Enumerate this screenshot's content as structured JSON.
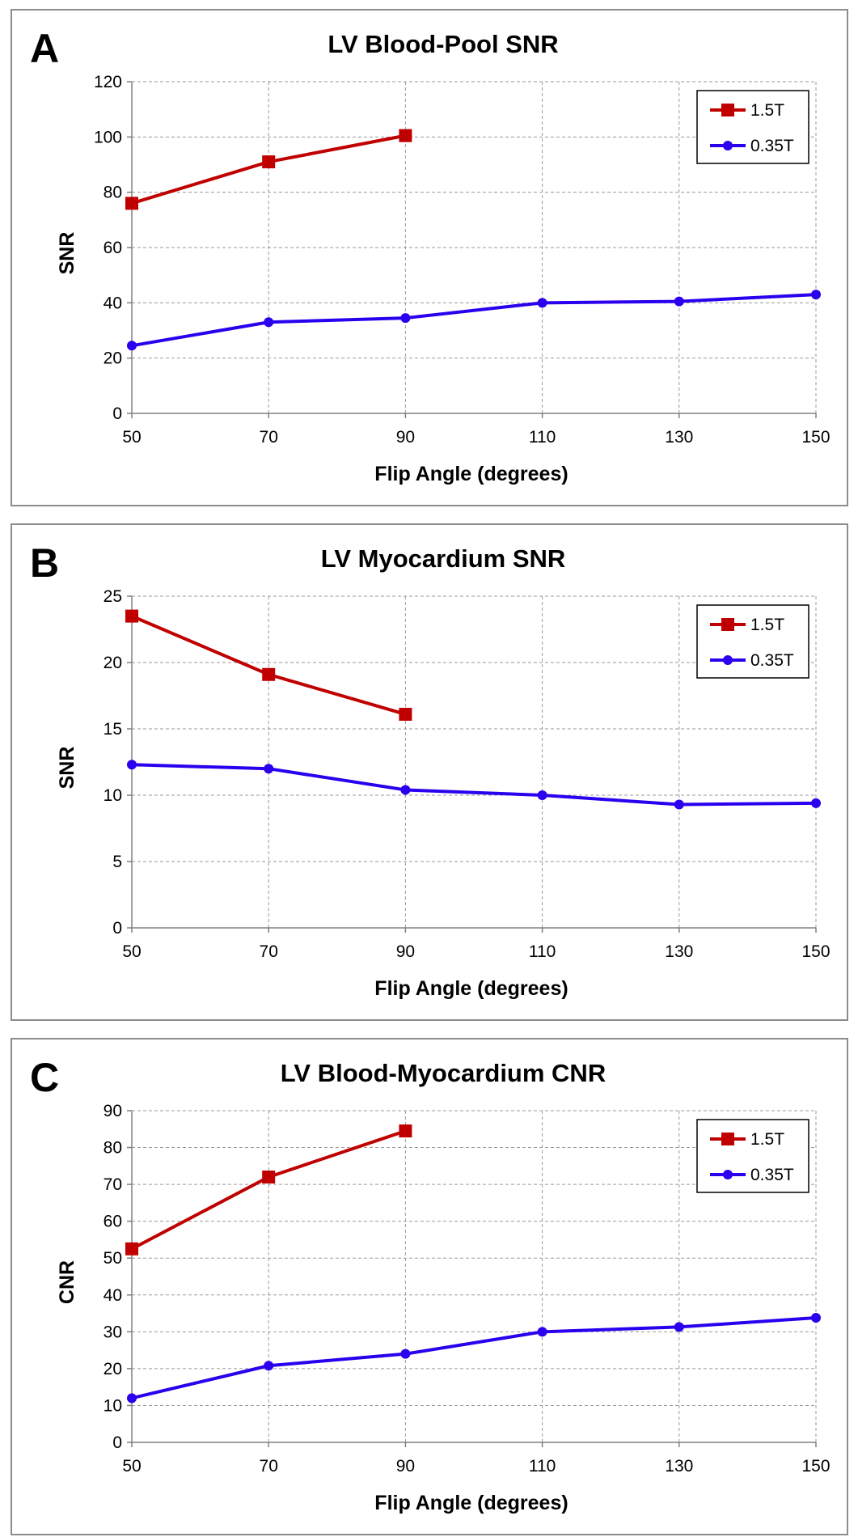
{
  "chart_data": [
    {
      "type": "line",
      "panel_letter": "A",
      "title": "LV Blood-Pool SNR",
      "xlabel": "Flip Angle (degrees)",
      "ylabel": "SNR",
      "x_ticks": [
        50,
        70,
        90,
        110,
        130,
        150
      ],
      "y_ticks": [
        0,
        20,
        40,
        60,
        80,
        100,
        120
      ],
      "xlim": [
        50,
        150
      ],
      "ylim": [
        0,
        120
      ],
      "grid": true,
      "legend_position": "top-right",
      "series": [
        {
          "name": "1.5T",
          "color": "#c00000",
          "marker": "square",
          "x": [
            50,
            70,
            90
          ],
          "values": [
            76,
            91,
            100.5
          ]
        },
        {
          "name": "0.35T",
          "color": "#2a00ee",
          "marker": "circle",
          "x": [
            50,
            70,
            90,
            110,
            130,
            150
          ],
          "values": [
            24.5,
            33,
            34.5,
            40,
            40.5,
            43
          ]
        }
      ]
    },
    {
      "type": "line",
      "panel_letter": "B",
      "title": "LV Myocardium SNR",
      "xlabel": "Flip Angle (degrees)",
      "ylabel": "SNR",
      "x_ticks": [
        50,
        70,
        90,
        110,
        130,
        150
      ],
      "y_ticks": [
        0,
        5,
        10,
        15,
        20,
        25
      ],
      "xlim": [
        50,
        150
      ],
      "ylim": [
        0,
        25
      ],
      "grid": true,
      "legend_position": "top-right",
      "series": [
        {
          "name": "1.5T",
          "color": "#c00000",
          "marker": "square",
          "x": [
            50,
            70,
            90
          ],
          "values": [
            23.5,
            19.1,
            16.1
          ]
        },
        {
          "name": "0.35T",
          "color": "#2a00ee",
          "marker": "circle",
          "x": [
            50,
            70,
            90,
            110,
            130,
            150
          ],
          "values": [
            12.3,
            12.0,
            10.4,
            10.0,
            9.3,
            9.4
          ]
        }
      ]
    },
    {
      "type": "line",
      "panel_letter": "C",
      "title": "LV Blood-Myocardium CNR",
      "xlabel": "Flip Angle (degrees)",
      "ylabel": "CNR",
      "x_ticks": [
        50,
        70,
        90,
        110,
        130,
        150
      ],
      "y_ticks": [
        0,
        10,
        20,
        30,
        40,
        50,
        60,
        70,
        80,
        90
      ],
      "xlim": [
        50,
        150
      ],
      "ylim": [
        0,
        90
      ],
      "grid": true,
      "legend_position": "top-right",
      "series": [
        {
          "name": "1.5T",
          "color": "#c00000",
          "marker": "square",
          "x": [
            50,
            70,
            90
          ],
          "values": [
            52.5,
            72,
            84.5
          ]
        },
        {
          "name": "0.35T",
          "color": "#2a00ee",
          "marker": "circle",
          "x": [
            50,
            70,
            90,
            110,
            130,
            150
          ],
          "values": [
            12,
            20.8,
            24,
            30,
            31.3,
            33.8
          ]
        }
      ]
    }
  ]
}
